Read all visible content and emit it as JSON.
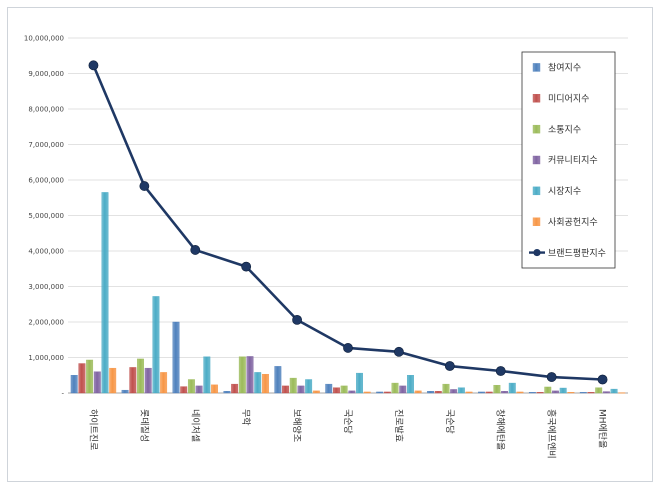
{
  "chart_data": {
    "type": "bar",
    "title": "",
    "xlabel": "",
    "ylabel": "",
    "ylim": [
      0,
      10000000
    ],
    "yticks": [
      0,
      1000000,
      2000000,
      3000000,
      4000000,
      5000000,
      6000000,
      7000000,
      8000000,
      9000000,
      10000000
    ],
    "ytick_labels": [
      "-",
      "1,000,000",
      "2,000,000",
      "3,000,000",
      "4,000,000",
      "5,000,000",
      "6,000,000",
      "7,000,000",
      "8,000,000",
      "9,000,000",
      "10,000,000"
    ],
    "grid": true,
    "legend_position": "right",
    "categories": [
      "하이트진로",
      "롯데칠성",
      "네이처셀",
      "무학",
      "보해양조",
      "국순당",
      "진로발효",
      "국순당",
      "창해에탄올",
      "흥국에프엔비",
      "MH에탄올"
    ],
    "series": [
      {
        "name": "참여지수",
        "color": "#4f81bd",
        "values": [
          500000,
          80000,
          2000000,
          50000,
          750000,
          250000,
          30000,
          50000,
          30000,
          20000,
          20000
        ]
      },
      {
        "name": "미디어지수",
        "color": "#c0504d",
        "values": [
          830000,
          720000,
          180000,
          250000,
          200000,
          150000,
          30000,
          50000,
          30000,
          20000,
          20000
        ]
      },
      {
        "name": "소통지수",
        "color": "#9bbb59",
        "values": [
          930000,
          960000,
          380000,
          1020000,
          420000,
          200000,
          280000,
          250000,
          220000,
          170000,
          150000
        ]
      },
      {
        "name": "커뮤니티지수",
        "color": "#8064a2",
        "values": [
          600000,
          700000,
          200000,
          1030000,
          200000,
          60000,
          200000,
          100000,
          50000,
          60000,
          40000
        ]
      },
      {
        "name": "시장지수",
        "color": "#4bacc6",
        "values": [
          5650000,
          2720000,
          1020000,
          580000,
          380000,
          560000,
          500000,
          150000,
          280000,
          140000,
          110000
        ]
      },
      {
        "name": "사회공헌지수",
        "color": "#f79646",
        "values": [
          700000,
          580000,
          230000,
          530000,
          60000,
          30000,
          60000,
          30000,
          30000,
          20000,
          10000
        ]
      }
    ],
    "line_series": {
      "name": "브랜드평판지수",
      "color": "#1f3864",
      "values": [
        9230000,
        5830000,
        4030000,
        3560000,
        2060000,
        1270000,
        1160000,
        760000,
        620000,
        450000,
        380000
      ]
    }
  }
}
